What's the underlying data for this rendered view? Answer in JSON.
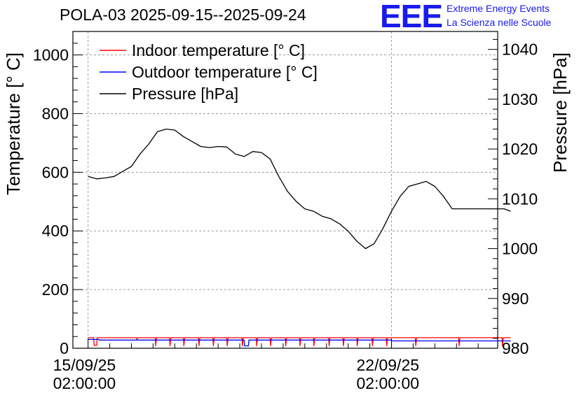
{
  "title": "POLA-03 2025-09-15--2025-09-24",
  "logo": {
    "mark": "EEE",
    "line1": "Extreme Energy Events",
    "line2": "La Scienza nelle Scuole"
  },
  "chart_data": {
    "type": "line",
    "title": "POLA-03 2025-09-15--2025-09-24",
    "xlabel": "",
    "ylabel": "Temperature [° C]",
    "y2label": "Pressure [hPa]",
    "ylim": [
      0,
      1080
    ],
    "y2lim": [
      980,
      1043.6
    ],
    "xlim": [
      -0.35,
      9.45
    ],
    "x_unit": "days since 15/09/25 02:00:00",
    "x_ticks": [
      {
        "x": 0,
        "line1": "15/09/25",
        "line2": "02:00:00"
      },
      {
        "x": 7,
        "line1": "22/09/25",
        "line2": "02:00:00"
      }
    ],
    "y_ticks": [
      0,
      200,
      400,
      600,
      800,
      1000
    ],
    "y2_ticks": [
      980,
      990,
      1000,
      1010,
      1020,
      1030,
      1040
    ],
    "grid": true,
    "legend_position": "top-left",
    "series": [
      {
        "name": "Indoor temperature [° C]",
        "color": "#ff0000",
        "axis": "left",
        "x": [
          0,
          0.13,
          0.14,
          0.2,
          0.21,
          0.45,
          1.12,
          1.13,
          1.15,
          1.25,
          1.26,
          1.55,
          1.56,
          1.58,
          1.88,
          1.89,
          1.91,
          2.2,
          2.21,
          2.23,
          2.55,
          2.56,
          2.58,
          2.88,
          2.89,
          2.91,
          3.2,
          3.21,
          3.23,
          3.55,
          3.56,
          3.58,
          3.88,
          3.89,
          3.91,
          4.2,
          4.21,
          4.23,
          4.55,
          4.56,
          4.58,
          4.88,
          4.89,
          4.91,
          5.2,
          5.21,
          5.23,
          5.55,
          5.56,
          5.58,
          5.88,
          5.89,
          5.91,
          6.2,
          6.21,
          6.23,
          6.55,
          6.56,
          6.58,
          6.88,
          6.89,
          6.91,
          7.55,
          7.56,
          7.58,
          8.55,
          8.56,
          8.58,
          9.55,
          9.56,
          9.58,
          9.75
        ],
        "y": [
          36,
          36,
          10,
          10,
          36,
          36,
          36,
          30,
          36,
          36,
          36,
          36,
          8,
          36,
          36,
          8,
          36,
          36,
          8,
          36,
          36,
          8,
          36,
          36,
          8,
          36,
          36,
          8,
          36,
          36,
          8,
          36,
          36,
          8,
          36,
          36,
          8,
          36,
          36,
          8,
          36,
          36,
          8,
          36,
          36,
          8,
          36,
          36,
          8,
          36,
          36,
          8,
          36,
          36,
          8,
          36,
          36,
          8,
          36,
          36,
          8,
          36,
          36,
          8,
          36,
          36,
          8,
          36,
          36,
          8,
          36,
          36
        ]
      },
      {
        "name": "Outdoor temperature [° C]",
        "color": "#0000ff",
        "axis": "left",
        "x": [
          0,
          0.25,
          0.26,
          3.6,
          3.61,
          3.7,
          3.71,
          7.0,
          7.01,
          9.75
        ],
        "y": [
          30,
          30,
          28,
          28,
          8,
          8,
          28,
          28,
          25,
          25
        ]
      },
      {
        "name": "Pressure [hPa]",
        "color": "#000000",
        "axis": "right",
        "x": [
          0,
          0.2,
          0.4,
          0.6,
          0.8,
          1.0,
          1.2,
          1.4,
          1.6,
          1.8,
          2.0,
          2.2,
          2.4,
          2.6,
          2.8,
          3.0,
          3.2,
          3.4,
          3.6,
          3.8,
          4.0,
          4.2,
          4.4,
          4.6,
          4.8,
          5.0,
          5.2,
          5.4,
          5.6,
          5.8,
          6.0,
          6.2,
          6.4,
          6.6,
          6.8,
          7.0,
          7.2,
          7.4,
          7.6,
          7.8,
          8.0,
          8.2,
          8.4,
          8.6,
          8.8,
          9.0,
          9.2,
          9.4,
          9.6,
          9.75
        ],
        "y": [
          1014.5,
          1014.0,
          1014.2,
          1014.5,
          1015.5,
          1016.5,
          1019.0,
          1021.0,
          1023.5,
          1024.0,
          1023.8,
          1022.5,
          1021.5,
          1020.5,
          1020.3,
          1020.5,
          1020.4,
          1019.0,
          1018.5,
          1019.5,
          1019.3,
          1018.0,
          1014.5,
          1011.5,
          1009.5,
          1008.0,
          1007.5,
          1006.5,
          1006.0,
          1005.0,
          1003.5,
          1001.5,
          1000.0,
          1001.0,
          1004.0,
          1007.5,
          1010.5,
          1012.5,
          1013.0,
          1013.5,
          1012.5,
          1010.5,
          1008.0,
          1008.0,
          1008.0,
          1008.0,
          1008.0,
          1008.0,
          1008.0,
          1007.5
        ]
      }
    ]
  }
}
